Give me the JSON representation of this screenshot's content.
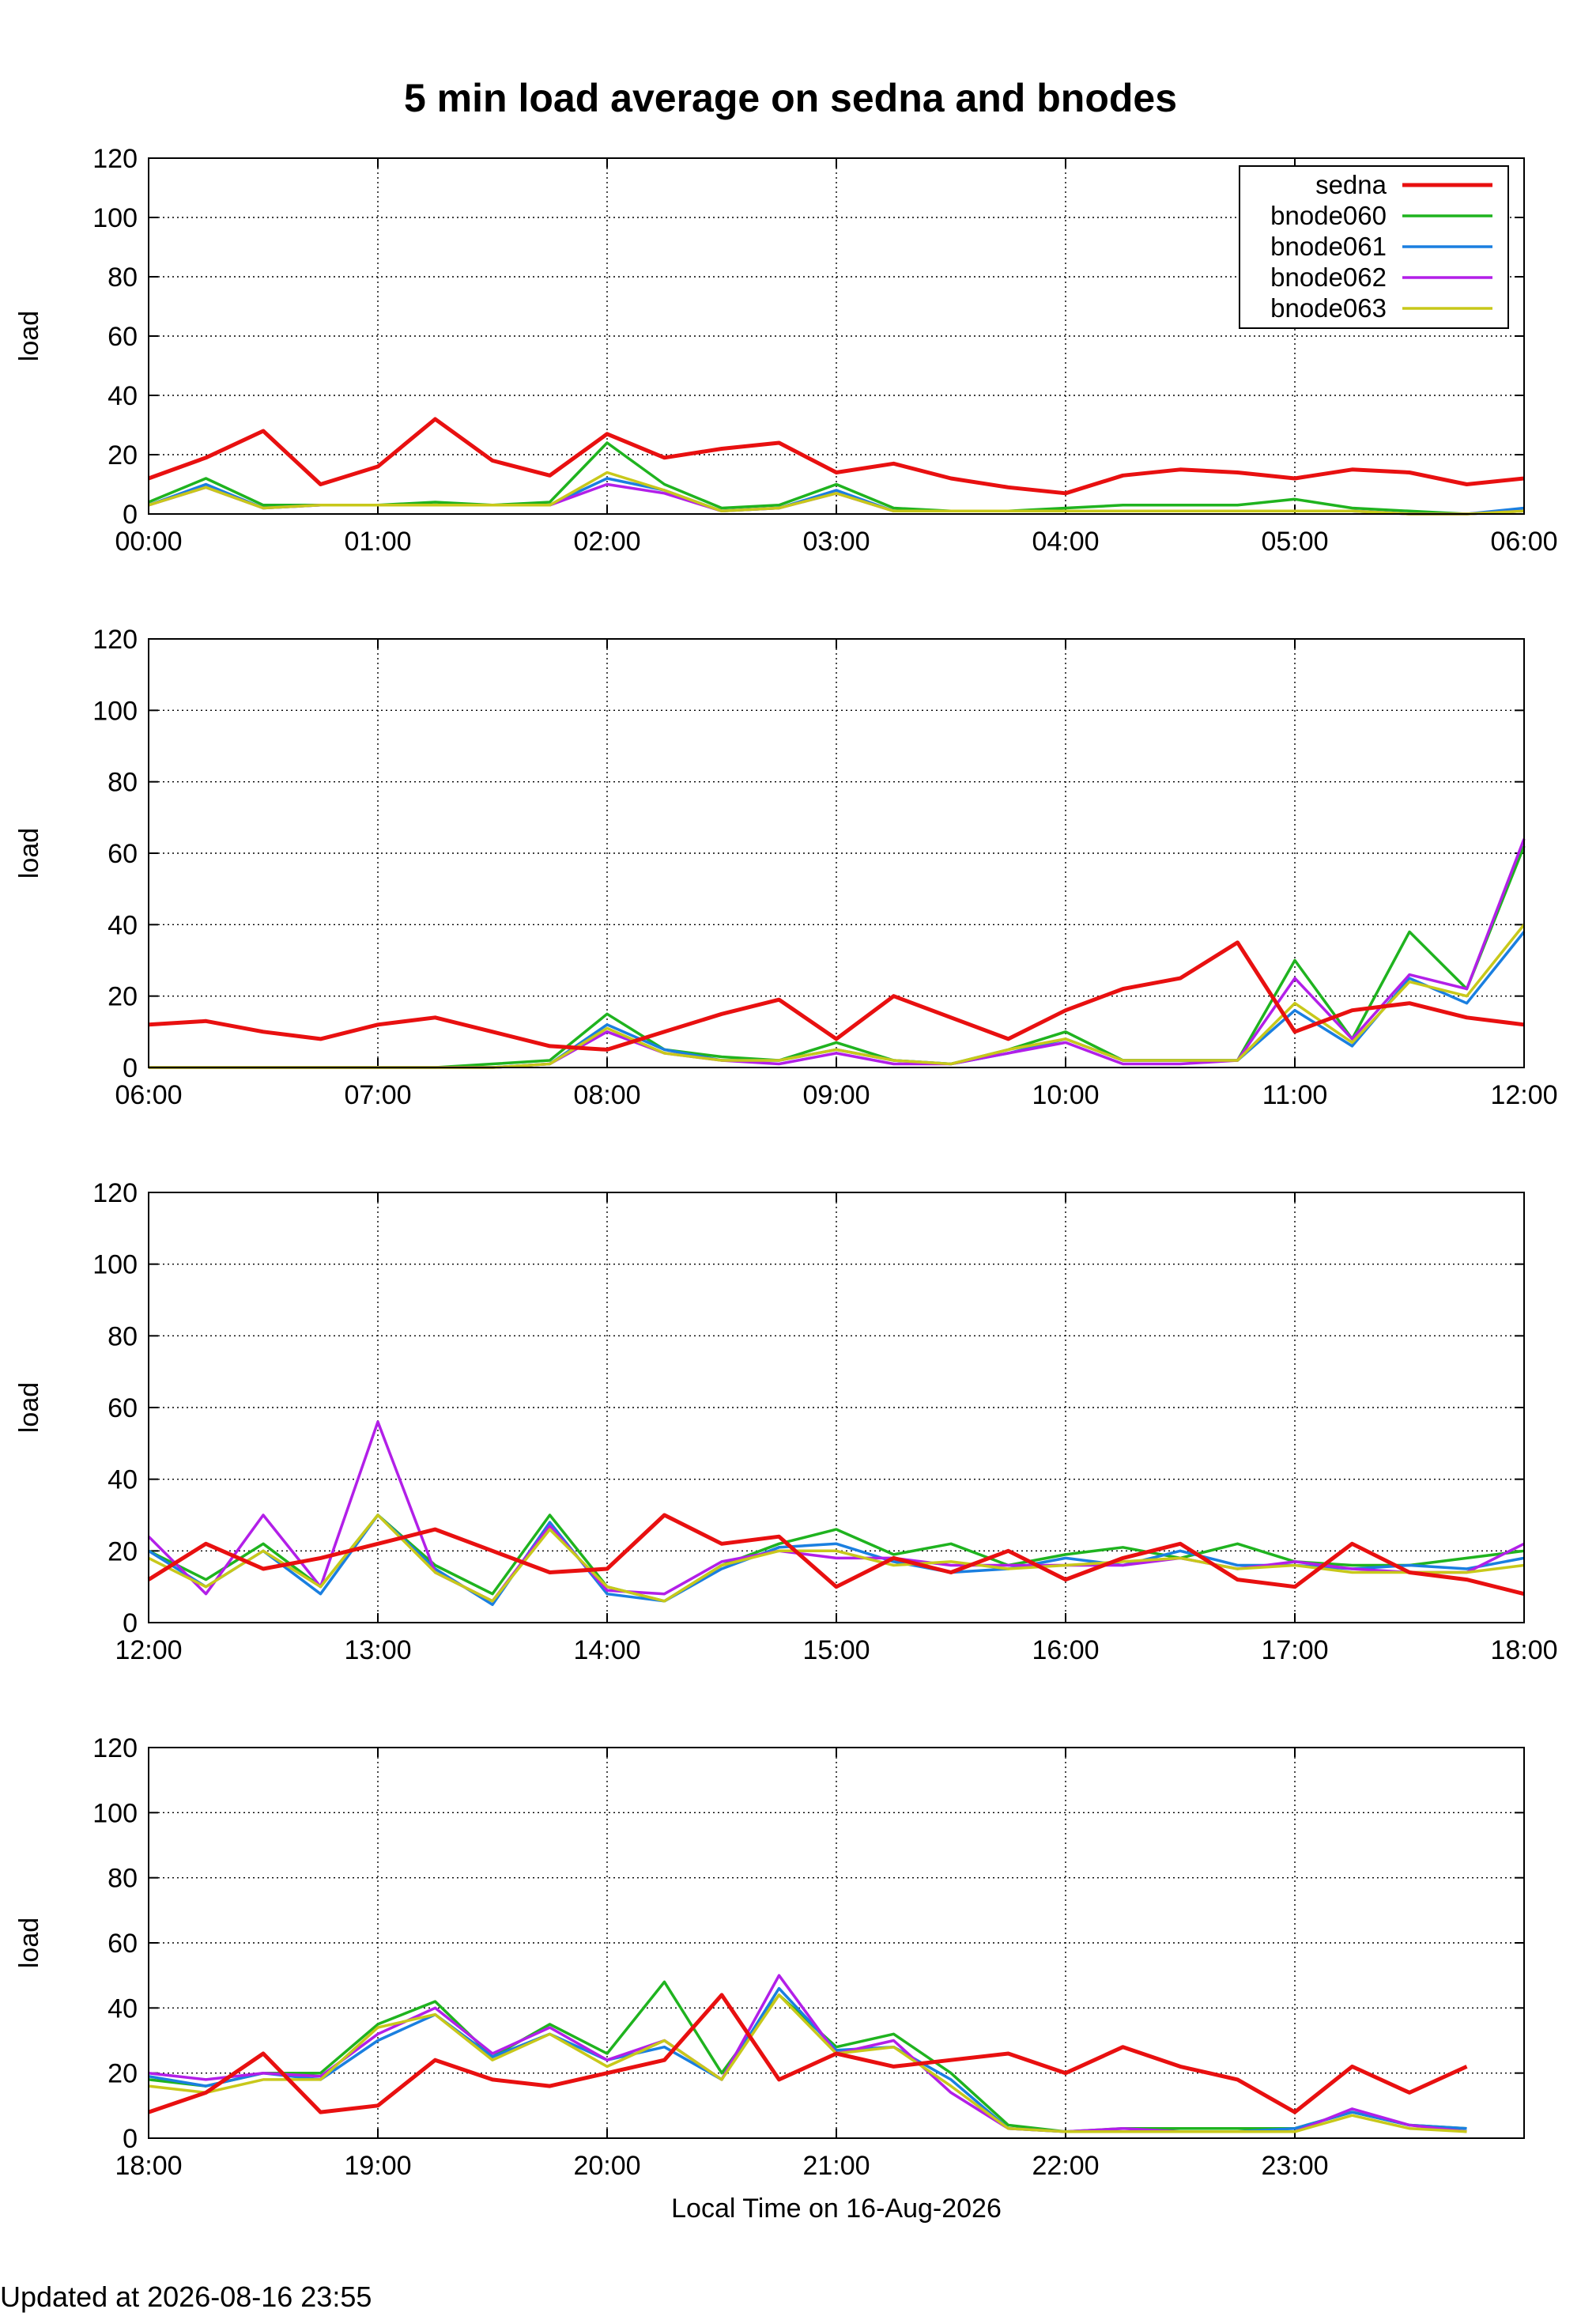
{
  "title": "5 min load average on sedna and bnodes",
  "footer": "Updated at 2026-08-16 23:55",
  "series_styles": [
    {
      "name": "sedna",
      "color": "#e81010"
    },
    {
      "name": "bnode060",
      "color": "#1fb31f"
    },
    {
      "name": "bnode061",
      "color": "#1a7fe0"
    },
    {
      "name": "bnode062",
      "color": "#b21fe8"
    },
    {
      "name": "bnode063",
      "color": "#c8c81a"
    }
  ],
  "chart_data": [
    {
      "type": "line",
      "x": [
        "00:00",
        "00:15",
        "00:30",
        "00:45",
        "01:00",
        "01:15",
        "01:30",
        "01:45",
        "02:00",
        "02:15",
        "02:30",
        "02:45",
        "03:00",
        "03:15",
        "03:30",
        "03:45",
        "04:00",
        "04:15",
        "04:30",
        "04:45",
        "05:00",
        "05:15",
        "05:30",
        "05:45",
        "06:00"
      ],
      "xticks": [
        "00:00",
        "01:00",
        "02:00",
        "03:00",
        "04:00",
        "05:00",
        "06:00"
      ],
      "yticks": [
        0,
        20,
        40,
        60,
        80,
        100,
        120
      ],
      "ylim": [
        0,
        120
      ],
      "ylabel": "load",
      "grid": true,
      "legend": "top-right",
      "series": [
        {
          "name": "sedna",
          "values": [
            12,
            19,
            28,
            10,
            16,
            32,
            18,
            13,
            27,
            19,
            22,
            24,
            14,
            17,
            12,
            9,
            7,
            13,
            15,
            14,
            12,
            15,
            14,
            10,
            12
          ]
        },
        {
          "name": "bnode060",
          "values": [
            4,
            12,
            3,
            3,
            3,
            4,
            3,
            4,
            24,
            10,
            2,
            3,
            10,
            2,
            1,
            1,
            2,
            3,
            3,
            3,
            5,
            2,
            1,
            0,
            1
          ]
        },
        {
          "name": "bnode061",
          "values": [
            3,
            10,
            2,
            3,
            3,
            3,
            3,
            3,
            12,
            8,
            1,
            2,
            8,
            1,
            1,
            1,
            1,
            1,
            1,
            1,
            1,
            1,
            0,
            0,
            2
          ]
        },
        {
          "name": "bnode062",
          "values": [
            3,
            9,
            2,
            3,
            3,
            3,
            3,
            3,
            10,
            7,
            1,
            2,
            7,
            1,
            1,
            1,
            1,
            1,
            1,
            1,
            1,
            1,
            0,
            0,
            1
          ]
        },
        {
          "name": "bnode063",
          "values": [
            3,
            9,
            2,
            3,
            3,
            3,
            3,
            3,
            14,
            8,
            1,
            2,
            7,
            1,
            1,
            1,
            1,
            1,
            1,
            1,
            1,
            1,
            0,
            0,
            1
          ]
        }
      ]
    },
    {
      "type": "line",
      "x": [
        "06:00",
        "06:15",
        "06:30",
        "06:45",
        "07:00",
        "07:15",
        "07:30",
        "07:45",
        "08:00",
        "08:15",
        "08:30",
        "08:45",
        "09:00",
        "09:15",
        "09:30",
        "09:45",
        "10:00",
        "10:15",
        "10:30",
        "10:45",
        "11:00",
        "11:15",
        "11:30",
        "11:45",
        "12:00"
      ],
      "xticks": [
        "06:00",
        "07:00",
        "08:00",
        "09:00",
        "10:00",
        "11:00",
        "12:00"
      ],
      "yticks": [
        0,
        20,
        40,
        60,
        80,
        100,
        120
      ],
      "ylim": [
        0,
        120
      ],
      "ylabel": "load",
      "grid": true,
      "series": [
        {
          "name": "sedna",
          "values": [
            12,
            13,
            10,
            8,
            12,
            14,
            10,
            6,
            5,
            10,
            15,
            19,
            8,
            20,
            14,
            8,
            16,
            22,
            25,
            35,
            10,
            16,
            18,
            14,
            12
          ]
        },
        {
          "name": "bnode060",
          "values": [
            0,
            0,
            0,
            0,
            0,
            0,
            1,
            2,
            15,
            5,
            3,
            2,
            7,
            2,
            1,
            5,
            10,
            2,
            2,
            2,
            30,
            8,
            38,
            22,
            62
          ]
        },
        {
          "name": "bnode061",
          "values": [
            0,
            0,
            0,
            0,
            0,
            0,
            0,
            1,
            12,
            5,
            2,
            2,
            5,
            2,
            1,
            4,
            8,
            2,
            2,
            2,
            16,
            6,
            25,
            18,
            38
          ]
        },
        {
          "name": "bnode062",
          "values": [
            0,
            0,
            0,
            0,
            0,
            0,
            0,
            1,
            10,
            4,
            2,
            1,
            4,
            1,
            1,
            4,
            7,
            1,
            1,
            2,
            25,
            8,
            26,
            22,
            64
          ]
        },
        {
          "name": "bnode063",
          "values": [
            0,
            0,
            0,
            0,
            0,
            0,
            0,
            1,
            11,
            4,
            2,
            2,
            5,
            2,
            1,
            5,
            8,
            2,
            2,
            2,
            18,
            7,
            24,
            20,
            40
          ]
        }
      ]
    },
    {
      "type": "line",
      "x": [
        "12:00",
        "12:15",
        "12:30",
        "12:45",
        "13:00",
        "13:15",
        "13:30",
        "13:45",
        "14:00",
        "14:15",
        "14:30",
        "14:45",
        "15:00",
        "15:15",
        "15:30",
        "15:45",
        "16:00",
        "16:15",
        "16:30",
        "16:45",
        "17:00",
        "17:15",
        "17:30",
        "17:45",
        "18:00"
      ],
      "xticks": [
        "12:00",
        "13:00",
        "14:00",
        "15:00",
        "16:00",
        "17:00",
        "18:00"
      ],
      "yticks": [
        0,
        20,
        40,
        60,
        80,
        100,
        120
      ],
      "ylim": [
        0,
        120
      ],
      "ylabel": "load",
      "grid": true,
      "series": [
        {
          "name": "sedna",
          "values": [
            12,
            22,
            15,
            18,
            22,
            26,
            20,
            14,
            15,
            30,
            22,
            24,
            10,
            18,
            14,
            20,
            12,
            18,
            22,
            12,
            10,
            22,
            14,
            12,
            8
          ]
        },
        {
          "name": "bnode060",
          "values": [
            20,
            12,
            22,
            10,
            30,
            16,
            8,
            30,
            10,
            6,
            16,
            22,
            26,
            19,
            22,
            16,
            19,
            21,
            18,
            22,
            17,
            16,
            16,
            18,
            20
          ]
        },
        {
          "name": "bnode061",
          "values": [
            20,
            10,
            20,
            8,
            30,
            15,
            5,
            28,
            8,
            6,
            15,
            21,
            22,
            17,
            14,
            15,
            18,
            16,
            20,
            16,
            16,
            15,
            16,
            15,
            18
          ]
        },
        {
          "name": "bnode062",
          "values": [
            24,
            8,
            30,
            10,
            56,
            14,
            6,
            27,
            9,
            8,
            17,
            20,
            18,
            18,
            16,
            16,
            16,
            16,
            18,
            15,
            17,
            15,
            14,
            14,
            22
          ]
        },
        {
          "name": "bnode063",
          "values": [
            18,
            10,
            20,
            10,
            30,
            14,
            6,
            26,
            10,
            6,
            16,
            20,
            20,
            16,
            17,
            15,
            16,
            17,
            18,
            15,
            16,
            14,
            14,
            14,
            16
          ]
        }
      ]
    },
    {
      "type": "line",
      "x": [
        "18:00",
        "18:15",
        "18:30",
        "18:45",
        "19:00",
        "19:15",
        "19:30",
        "19:45",
        "20:00",
        "20:15",
        "20:30",
        "20:45",
        "21:00",
        "21:15",
        "21:30",
        "21:45",
        "22:00",
        "22:15",
        "22:30",
        "22:45",
        "23:00",
        "23:15",
        "23:30",
        "23:45"
      ],
      "xticks": [
        "18:00",
        "19:00",
        "20:00",
        "21:00",
        "22:00",
        "23:00"
      ],
      "yticks": [
        0,
        20,
        40,
        60,
        80,
        100,
        120
      ],
      "ylim": [
        0,
        120
      ],
      "ylabel": "load",
      "xlabel": "Local Time on 16-Aug-2026",
      "grid": true,
      "series": [
        {
          "name": "sedna",
          "values": [
            8,
            14,
            26,
            8,
            10,
            24,
            18,
            16,
            20,
            24,
            44,
            18,
            26,
            22,
            24,
            26,
            20,
            28,
            22,
            18,
            8,
            22,
            14,
            22
          ]
        },
        {
          "name": "bnode060",
          "values": [
            18,
            16,
            20,
            20,
            35,
            42,
            25,
            35,
            26,
            48,
            20,
            44,
            28,
            32,
            20,
            4,
            2,
            3,
            3,
            3,
            3,
            8,
            4,
            3
          ]
        },
        {
          "name": "bnode061",
          "values": [
            19,
            16,
            20,
            18,
            30,
            38,
            25,
            32,
            24,
            28,
            18,
            46,
            27,
            28,
            18,
            3,
            2,
            2,
            2,
            2,
            3,
            8,
            4,
            3
          ]
        },
        {
          "name": "bnode062",
          "values": [
            20,
            18,
            20,
            19,
            32,
            40,
            26,
            34,
            24,
            30,
            18,
            50,
            26,
            30,
            14,
            3,
            2,
            3,
            2,
            2,
            2,
            9,
            4,
            2
          ]
        },
        {
          "name": "bnode063",
          "values": [
            16,
            14,
            18,
            18,
            34,
            38,
            24,
            32,
            22,
            30,
            18,
            44,
            26,
            28,
            16,
            3,
            2,
            2,
            2,
            2,
            2,
            7,
            3,
            2
          ]
        }
      ]
    }
  ]
}
